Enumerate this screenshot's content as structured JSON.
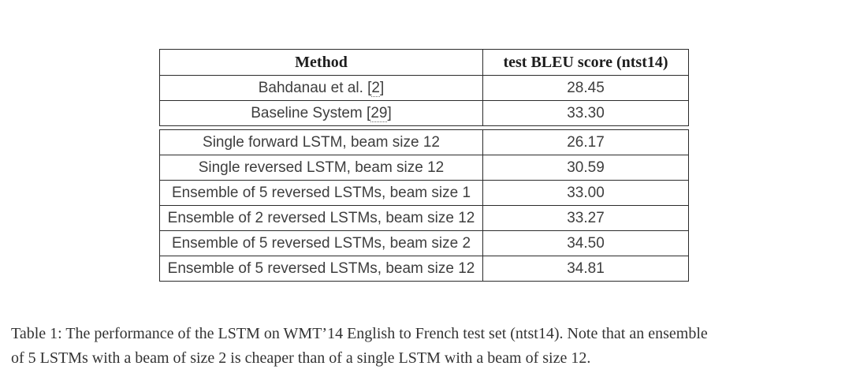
{
  "table": {
    "columns": [
      "Method",
      "test BLEU score (ntst14)"
    ],
    "baseline_rows": [
      {
        "method_pre": "Bahdanau et al. [",
        "citation": "2",
        "method_post": "]",
        "score": "28.45"
      },
      {
        "method_pre": "Baseline System [",
        "citation": "29",
        "method_post": "]",
        "score": "33.30"
      }
    ],
    "result_rows": [
      {
        "method": "Single forward LSTM, beam size 12",
        "score": "26.17"
      },
      {
        "method": "Single reversed LSTM, beam size 12",
        "score": "30.59"
      },
      {
        "method": "Ensemble of 5 reversed LSTMs, beam size 1",
        "score": "33.00"
      },
      {
        "method": "Ensemble of 2 reversed LSTMs, beam size 12",
        "score": "33.27"
      },
      {
        "method": "Ensemble of 5 reversed LSTMs, beam size 2",
        "score": "34.50"
      },
      {
        "method": "Ensemble of 5 reversed LSTMs, beam size 12",
        "score": "34.81"
      }
    ],
    "best_score": "34.81"
  },
  "caption": {
    "line1": "Table 1: The performance of the LSTM on WMT’14 English to French test set (ntst14). Note that an ensemble",
    "line2": "of 5 LSTMs with a beam of size 2 is cheaper than of a single LSTM with a beam of size 12."
  },
  "colors": {
    "background": "#ffffff",
    "table_border": "#2b2b2b",
    "body_text": "#3e3e3e",
    "heading_text": "#1d1d1d",
    "caption_text": "#333333"
  }
}
